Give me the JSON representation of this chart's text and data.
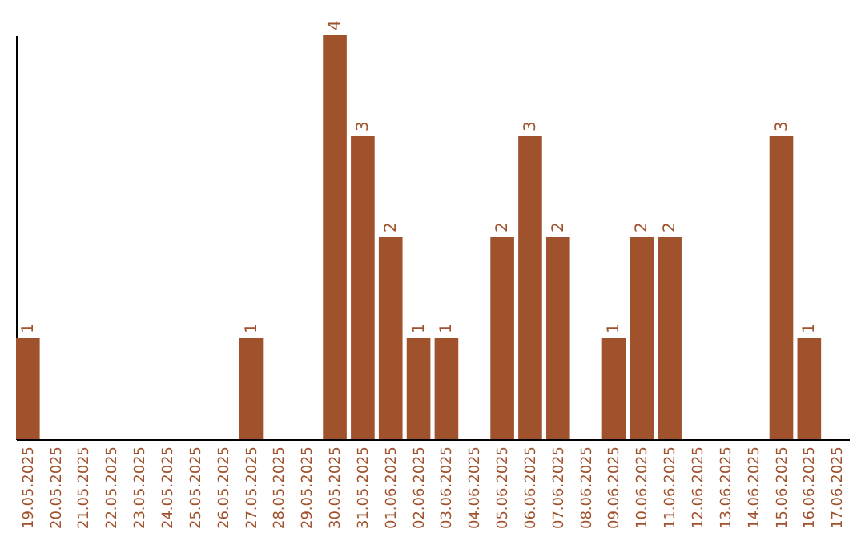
{
  "chart_data": {
    "type": "bar",
    "categories": [
      "19.05.2025",
      "20.05.2025",
      "21.05.2025",
      "22.05.2025",
      "23.05.2025",
      "24.05.2025",
      "25.05.2025",
      "26.05.2025",
      "27.05.2025",
      "28.05.2025",
      "29.05.2025",
      "30.05.2025",
      "31.05.2025",
      "01.06.2025",
      "02.06.2025",
      "03.06.2025",
      "04.06.2025",
      "05.06.2025",
      "06.06.2025",
      "07.06.2025",
      "08.06.2025",
      "09.06.2025",
      "10.06.2025",
      "11.06.2025",
      "12.06.2025",
      "13.06.2025",
      "14.06.2025",
      "15.06.2025",
      "16.06.2025",
      "17.06.2025"
    ],
    "values": [
      1,
      0,
      0,
      0,
      0,
      0,
      0,
      0,
      1,
      0,
      0,
      4,
      3,
      2,
      1,
      1,
      0,
      2,
      3,
      2,
      0,
      1,
      2,
      2,
      0,
      0,
      0,
      3,
      1,
      0
    ],
    "value_labels": [
      "1",
      null,
      null,
      null,
      null,
      null,
      null,
      null,
      "1",
      null,
      null,
      "4",
      "3",
      "2",
      "1",
      "1",
      null,
      "2",
      "3",
      "2",
      null,
      "1",
      "2",
      "2",
      null,
      null,
      null,
      "3",
      "1",
      null
    ],
    "color": "#a0522d",
    "tick_labels": "x"
  }
}
